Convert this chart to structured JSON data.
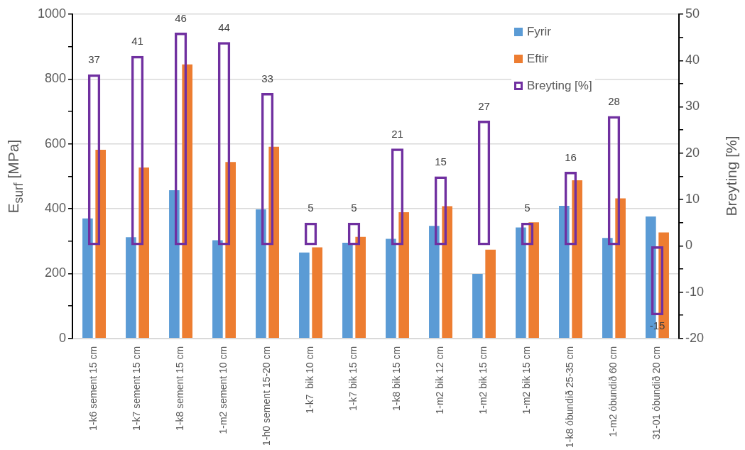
{
  "chart_data": {
    "type": "bar",
    "xlabel": null,
    "ylabel": "E$_{surf}$ [MPa]",
    "y2label": "Breyting [%]",
    "categories": [
      "1-k6 sement 15 cm",
      "1-k7 sement 15 cm",
      "1-k8 sement 15 cm",
      "1-m2 sement 10 cm",
      "1-h0 sement 15-20 cm",
      "1-k7  bik 10 cm",
      "1-k7 bik 15 cm",
      "1-k8 bik 15 cm",
      "1-m2 bik 12 cm",
      "1-m2 bik 15 cm",
      "1-m2 bik 15 cm",
      "1-k8 óbundið 25-35 cm",
      "1-m2 óbundið 60 cm",
      "31-01 óbundið 20 cm"
    ],
    "series": [
      {
        "name": "Fyrir",
        "color": "#5b9bd5",
        "values": [
          370,
          312,
          457,
          303,
          398,
          265,
          295,
          307,
          347,
          199,
          342,
          409,
          310,
          376
        ]
      },
      {
        "name": "Eftir",
        "color": "#ed7d31",
        "values": [
          582,
          527,
          845,
          544,
          591,
          281,
          313,
          389,
          408,
          274,
          358,
          488,
          432,
          327
        ]
      },
      {
        "name": "Breyting [%]",
        "color": "#7030a0",
        "axis": "y2",
        "values": [
          37,
          41,
          46,
          44,
          33,
          5,
          5,
          21,
          15,
          27,
          5,
          16,
          28,
          -15
        ],
        "value_labels": [
          "37",
          "41",
          "46",
          "44",
          "33",
          "5",
          "5",
          "21",
          "15",
          "27",
          "5",
          "16",
          "28",
          "-15"
        ]
      }
    ],
    "ylim": [
      0,
      1000
    ],
    "yticks": [
      0,
      {
        "value": 100,
        "label": null
      },
      200,
      {
        "value": 300,
        "label": null
      },
      400,
      {
        "value": 500,
        "label": null
      },
      600,
      {
        "value": 700,
        "label": null
      },
      800,
      {
        "value": 900,
        "label": null
      },
      1000
    ],
    "y2lim": [
      -20,
      50
    ],
    "y2ticks": [
      -20,
      {
        "value": -15,
        "label": null
      },
      -10,
      {
        "value": -5,
        "label": null
      },
      0,
      {
        "value": 5,
        "label": null
      },
      10,
      {
        "value": 15,
        "label": null
      },
      20,
      {
        "value": 25,
        "label": null
      },
      30,
      {
        "value": 35,
        "label": null
      },
      40,
      {
        "value": 45,
        "label": null
      },
      50
    ],
    "grid": "y",
    "legend": "top right"
  }
}
